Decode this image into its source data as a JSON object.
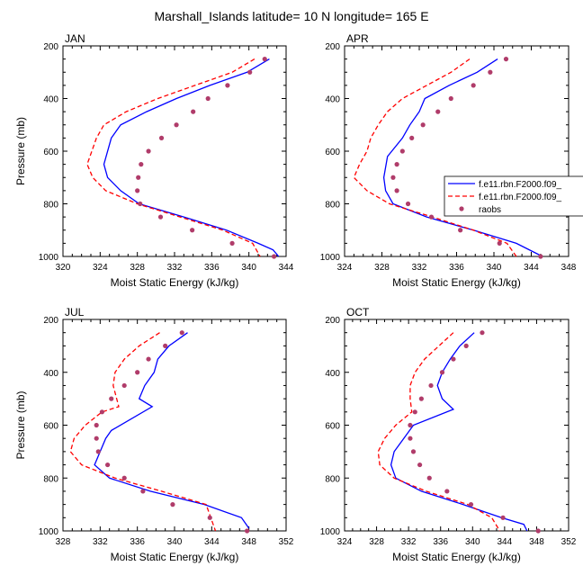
{
  "figure_title": "Marshall_Islands  latitude= 10 N longitude= 165 E",
  "legend": [
    {
      "label": "f.e11.rbn.F2000.f09_",
      "color": "#0000ff",
      "dash": "solid",
      "marker": "line"
    },
    {
      "label": "f.e11.rbn.F2000.f09_",
      "color": "#ff0000",
      "dash": "dashed",
      "marker": "line"
    },
    {
      "label": "raobs",
      "color": "#b03c6a",
      "marker": "dot"
    }
  ],
  "chart_data": [
    {
      "type": "line",
      "panel_label": "JAN",
      "xlabel": "Moist Static Energy (kJ/kg)",
      "ylabel": "Pressure (mb)",
      "xlim": [
        320,
        344
      ],
      "ylim": [
        1000,
        200
      ],
      "xticks": [
        "320",
        "324",
        "328",
        "332",
        "336",
        "340",
        "344"
      ],
      "yticks": [
        "200",
        "400",
        "600",
        "800",
        "1000"
      ],
      "series": [
        {
          "name": "f.e11.rbn.F2000.f09_",
          "color": "#0000ff",
          "style": "solid",
          "x": [
            342.2,
            339.8,
            335.8,
            332.2,
            329.0,
            326.2,
            325.2,
            324.4,
            324.8,
            326.2,
            328.2,
            333.0,
            337.6,
            341.0,
            342.6,
            343.2
          ],
          "y": [
            250,
            300,
            350,
            400,
            450,
            500,
            550,
            650,
            700,
            750,
            800,
            850,
            900,
            950,
            975,
            1000
          ]
        },
        {
          "name": "f.e11.rbn.F2000.f09_",
          "color": "#ff0000",
          "style": "dashed",
          "x": [
            340.6,
            338.2,
            334.2,
            330.2,
            326.8,
            324.4,
            323.6,
            322.6,
            323.2,
            324.6,
            328.0,
            332.6,
            337.2,
            340.4,
            341.2
          ],
          "y": [
            250,
            300,
            350,
            400,
            450,
            500,
            550,
            650,
            700,
            750,
            800,
            850,
            900,
            950,
            1000
          ]
        },
        {
          "name": "raobs",
          "color": "#b03c6a",
          "style": "dots",
          "x": [
            341.7,
            340.1,
            337.7,
            335.6,
            334.0,
            332.2,
            330.6,
            329.2,
            328.4,
            328.1,
            328.0,
            328.3,
            330.5,
            333.9,
            338.2,
            342.7
          ],
          "y": [
            250,
            300,
            350,
            400,
            450,
            500,
            550,
            600,
            650,
            700,
            750,
            800,
            850,
            900,
            950,
            1000
          ]
        }
      ]
    },
    {
      "type": "line",
      "panel_label": "APR",
      "xlabel": "Moist Static Energy (kJ/kg)",
      "ylabel": "",
      "xlim": [
        324,
        348
      ],
      "ylim": [
        1000,
        200
      ],
      "xticks": [
        "324",
        "328",
        "332",
        "336",
        "340",
        "344",
        "348"
      ],
      "yticks": [
        "200",
        "400",
        "600",
        "800",
        "1000"
      ],
      "series": [
        {
          "name": "f.e11.rbn.F2000.f09_",
          "color": "#0000ff",
          "style": "solid",
          "x": [
            340.4,
            338.2,
            335.2,
            332.6,
            332.0,
            331.0,
            330.2,
            328.6,
            328.2,
            328.4,
            329.2,
            332.8,
            337.8,
            342.4,
            345.2
          ],
          "y": [
            250,
            300,
            350,
            400,
            450,
            500,
            550,
            620,
            700,
            750,
            800,
            850,
            900,
            950,
            1000
          ]
        },
        {
          "name": "f.e11.rbn.F2000.f09_",
          "color": "#ff0000",
          "style": "dashed",
          "x": [
            337.4,
            335.4,
            332.8,
            330.2,
            328.6,
            327.6,
            326.8,
            326.4,
            325.6,
            325.0,
            326.4,
            328.8,
            333.4,
            337.8,
            341.4,
            342.4
          ],
          "y": [
            250,
            300,
            350,
            400,
            450,
            500,
            550,
            600,
            650,
            700,
            750,
            800,
            850,
            900,
            950,
            1000
          ]
        },
        {
          "name": "raobs",
          "color": "#b03c6a",
          "style": "dots",
          "x": [
            341.3,
            339.6,
            337.8,
            335.4,
            334.0,
            332.4,
            331.2,
            330.2,
            329.6,
            329.2,
            329.6,
            330.8,
            333.3,
            336.4,
            340.6,
            345.0
          ],
          "y": [
            250,
            300,
            350,
            400,
            450,
            500,
            550,
            600,
            650,
            700,
            750,
            800,
            850,
            900,
            950,
            1000
          ]
        }
      ]
    },
    {
      "type": "line",
      "panel_label": "JUL",
      "xlabel": "Moist Static Energy (kJ/kg)",
      "ylabel": "Pressure (mb)",
      "xlim": [
        328,
        352
      ],
      "ylim": [
        1000,
        200
      ],
      "xticks": [
        "328",
        "332",
        "336",
        "340",
        "344",
        "348",
        "352"
      ],
      "yticks": [
        "200",
        "400",
        "600",
        "800",
        "1000"
      ],
      "series": [
        {
          "name": "f.e11.rbn.F2000.f09_",
          "color": "#0000ff",
          "style": "solid",
          "x": [
            341.4,
            339.4,
            338.2,
            337.8,
            336.8,
            336.2,
            337.6,
            333.2,
            332.6,
            332.0,
            331.4,
            333.0,
            337.4,
            343.2,
            347.2,
            348.0
          ],
          "y": [
            250,
            300,
            350,
            400,
            450,
            500,
            530,
            620,
            650,
            700,
            750,
            800,
            850,
            900,
            950,
            990
          ]
        },
        {
          "name": "f.e11.rbn.F2000.f09_",
          "color": "#ff0000",
          "style": "dashed",
          "x": [
            338.4,
            336.2,
            334.6,
            333.6,
            333.4,
            334.0,
            332.2,
            330.4,
            329.2,
            328.8,
            330.0,
            333.6,
            338.6,
            343.4,
            344.4
          ],
          "y": [
            250,
            300,
            350,
            400,
            450,
            530,
            550,
            600,
            650,
            700,
            750,
            800,
            850,
            900,
            1000
          ]
        },
        {
          "name": "raobs",
          "color": "#b03c6a",
          "style": "dots",
          "x": [
            340.8,
            339.0,
            337.2,
            336.0,
            334.6,
            333.2,
            332.2,
            331.6,
            331.6,
            331.8,
            332.8,
            334.6,
            336.6,
            339.8,
            343.8,
            347.8
          ],
          "y": [
            250,
            300,
            350,
            400,
            450,
            500,
            550,
            600,
            650,
            700,
            750,
            800,
            850,
            900,
            950,
            1000
          ]
        }
      ]
    },
    {
      "type": "line",
      "panel_label": "OCT",
      "xlabel": "Moist Static Energy (kJ/kg)",
      "ylabel": "",
      "xlim": [
        324,
        352
      ],
      "ylim": [
        1000,
        200
      ],
      "xticks": [
        "324",
        "328",
        "332",
        "336",
        "340",
        "344",
        "348",
        "352"
      ],
      "yticks": [
        "200",
        "400",
        "600",
        "800",
        "1000"
      ],
      "series": [
        {
          "name": "f.e11.rbn.F2000.f09_",
          "color": "#0000ff",
          "style": "solid",
          "x": [
            340.2,
            338.4,
            337.2,
            336.2,
            335.6,
            336.2,
            337.6,
            332.6,
            331.4,
            330.2,
            329.8,
            330.4,
            333.6,
            338.8,
            343.6,
            346.4,
            346.8
          ],
          "y": [
            250,
            300,
            350,
            400,
            450,
            500,
            540,
            600,
            650,
            700,
            750,
            800,
            850,
            900,
            950,
            975,
            1000
          ]
        },
        {
          "name": "f.e11.rbn.F2000.f09_",
          "color": "#ff0000",
          "style": "dashed",
          "x": [
            337.6,
            335.8,
            334.0,
            332.8,
            332.2,
            332.2,
            332.4,
            330.4,
            329.0,
            328.2,
            328.4,
            330.2,
            334.2,
            339.4,
            342.4,
            343.4
          ],
          "y": [
            250,
            300,
            350,
            400,
            450,
            500,
            550,
            600,
            650,
            700,
            750,
            800,
            850,
            900,
            950,
            1000
          ]
        },
        {
          "name": "raobs",
          "color": "#b03c6a",
          "style": "dots",
          "x": [
            341.2,
            339.2,
            337.6,
            336.2,
            334.8,
            333.6,
            332.8,
            332.2,
            332.2,
            332.6,
            333.4,
            334.6,
            336.8,
            339.8,
            343.8,
            348.2
          ],
          "y": [
            250,
            300,
            350,
            400,
            450,
            500,
            550,
            600,
            650,
            700,
            750,
            800,
            850,
            900,
            950,
            1000
          ]
        }
      ]
    }
  ]
}
